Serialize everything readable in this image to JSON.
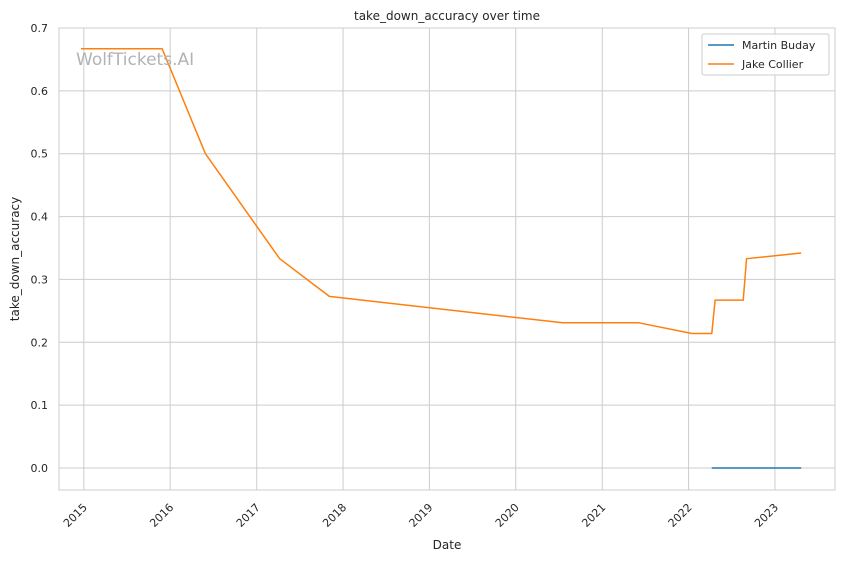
{
  "chart_data": {
    "type": "line",
    "title": "take_down_accuracy over time",
    "xlabel": "Date",
    "ylabel": "take_down_accuracy",
    "watermark": "WolfTickets.AI",
    "x_axis_type": "date",
    "xlim": [
      "2014-09-18",
      "2023-09-12"
    ],
    "ylim": [
      -0.035,
      0.7
    ],
    "x_ticks": [
      "2015",
      "2016",
      "2017",
      "2018",
      "2019",
      "2020",
      "2021",
      "2022",
      "2023"
    ],
    "y_ticks": [
      0.0,
      0.1,
      0.2,
      0.3,
      0.4,
      0.5,
      0.6,
      0.7
    ],
    "y_tick_labels": [
      "0.0",
      "0.1",
      "0.2",
      "0.3",
      "0.4",
      "0.5",
      "0.6",
      "0.7"
    ],
    "x_tick_rotation": 45,
    "grid": true,
    "legend_placement": "top-right",
    "series": [
      {
        "name": "Martin Buday",
        "color": "#1f77b4",
        "points": [
          {
            "x": "2022-04-09",
            "y": 0.0
          },
          {
            "x": "2023-04-22",
            "y": 0.0
          }
        ]
      },
      {
        "name": "Jake Collier",
        "color": "#ff7f0e",
        "points": [
          {
            "x": "2014-12-20",
            "y": 0.667
          },
          {
            "x": "2015-11-28",
            "y": 0.667
          },
          {
            "x": "2016-05-29",
            "y": 0.5
          },
          {
            "x": "2017-04-08",
            "y": 0.333
          },
          {
            "x": "2017-11-04",
            "y": 0.273
          },
          {
            "x": "2020-07-18",
            "y": 0.231
          },
          {
            "x": "2021-06-05",
            "y": 0.231
          },
          {
            "x": "2022-01-15",
            "y": 0.214
          },
          {
            "x": "2022-04-09",
            "y": 0.214
          },
          {
            "x": "2022-04-23",
            "y": 0.267
          },
          {
            "x": "2022-08-20",
            "y": 0.267
          },
          {
            "x": "2022-09-03",
            "y": 0.333
          },
          {
            "x": "2023-04-22",
            "y": 0.342
          }
        ]
      }
    ]
  }
}
